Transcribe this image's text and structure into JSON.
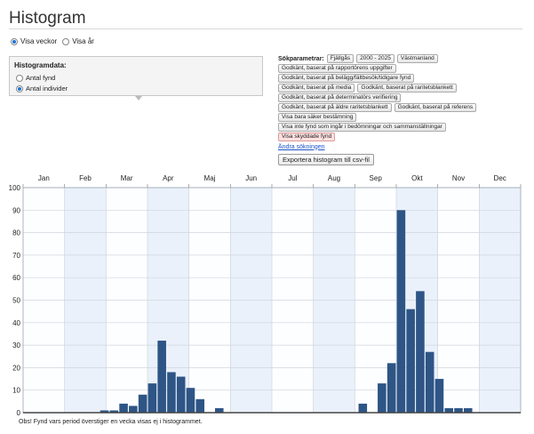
{
  "page": {
    "title": "Histogram"
  },
  "view_mode": {
    "options": [
      "Visa veckor",
      "Visa år"
    ],
    "selected": "Visa veckor"
  },
  "histogram_data": {
    "title": "Histogramdata:",
    "options": [
      "Antal fynd",
      "Antal individer"
    ],
    "selected": "Antal individer"
  },
  "search_params": {
    "label": "Sökparametrar:",
    "rows": [
      [
        "Fjällgås",
        "2000 - 2025",
        "Västmanland"
      ],
      [
        "Godkänt, baserat på rapportörens uppgifter"
      ],
      [
        "Godkänt, baserat på belägg/fältbesök/tidigare fynd"
      ],
      [
        "Godkänt, baserat på media",
        "Godkänt, baserat på raritetsblankett"
      ],
      [
        "Godkänt, baserat på determinatörs verifiering"
      ],
      [
        "Godkänt, baserat på äldre raritetsblankett",
        "Godkänt, baserat på referens"
      ],
      [
        "Visa bara säker bestämning"
      ],
      [
        "Visa inte fynd som ingår i bedömningar och sammanställningar"
      ],
      [
        "Visa skyddade fynd"
      ]
    ],
    "highlighted_chip": "Visa skyddade fynd",
    "change_link": "Ändra sökningen"
  },
  "export_button": "Exportera histogram till csv-fil",
  "footnote": "Obs! Fynd vars period överstiger en vecka visas ej i histogrammet.",
  "colors": {
    "bar": "#2e5585",
    "band": "#eaf1fb",
    "grid": "#cfd6de",
    "link": "#1a55c8"
  },
  "chart_data": {
    "type": "bar",
    "months": [
      "Jan",
      "Feb",
      "Mar",
      "Apr",
      "Maj",
      "Jun",
      "Jul",
      "Aug",
      "Sep",
      "Okt",
      "Nov",
      "Dec"
    ],
    "x_unit": "week",
    "ylim": [
      0,
      100
    ],
    "yticks": [
      0,
      10,
      20,
      30,
      40,
      50,
      60,
      70,
      80,
      90,
      100
    ],
    "grid": true,
    "series": [
      {
        "values": [
          0,
          0,
          0,
          0,
          0,
          0,
          0,
          0,
          1,
          1,
          4,
          3,
          8,
          13,
          32,
          18,
          16,
          11,
          6,
          0,
          2,
          0,
          0,
          0,
          0,
          0,
          0,
          0,
          0,
          0,
          0,
          0,
          0,
          0,
          0,
          4,
          0,
          13,
          22,
          90,
          46,
          54,
          27,
          15,
          2,
          2,
          2,
          0,
          0,
          0,
          0,
          0
        ]
      }
    ]
  }
}
